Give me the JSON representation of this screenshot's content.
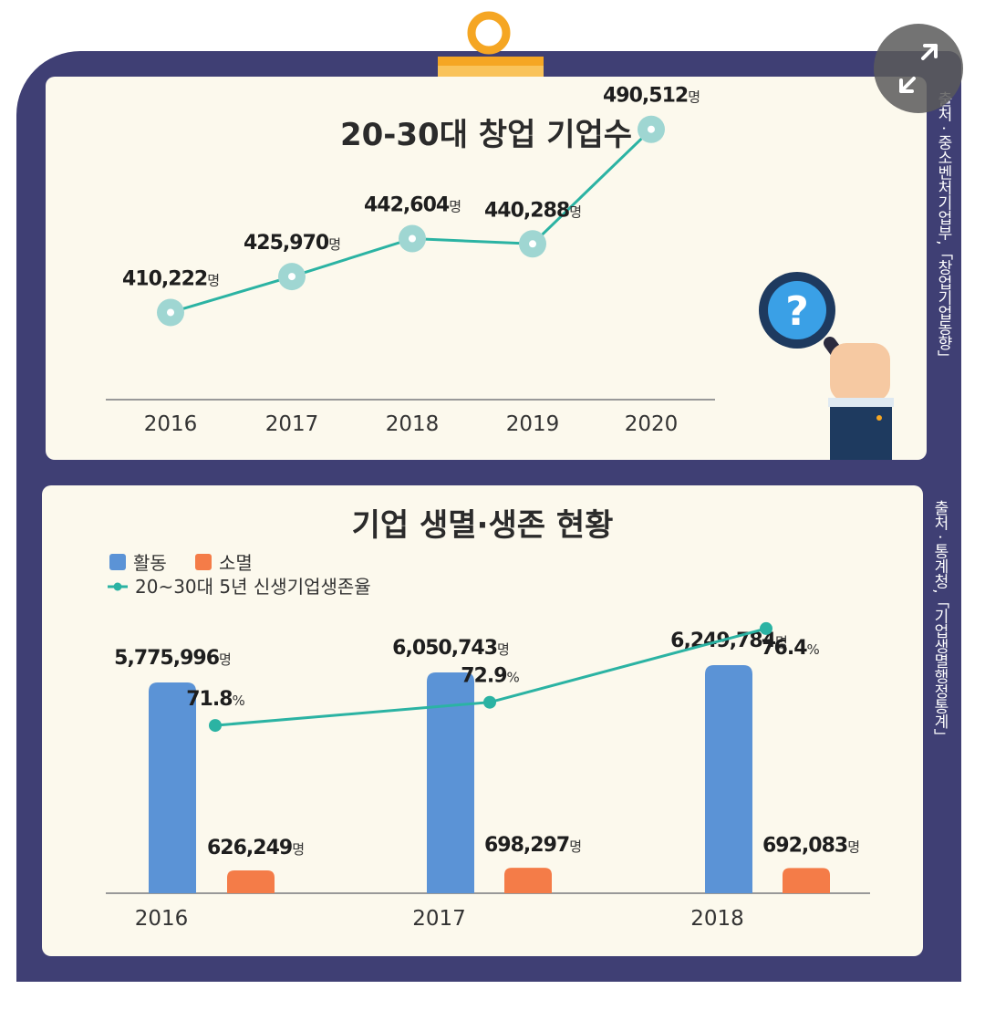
{
  "sources": {
    "top": "출처 · 중소벤처기업부,「창업기업동향」",
    "bottom": "출처 · 통계청,「기업생멸행정통계」"
  },
  "colors": {
    "frame": "#3f3f74",
    "panel": "#fcf9ed",
    "line": "#2bb3a3",
    "active_bar": "#5b93d6",
    "closed_bar": "#f47c48",
    "top_marker": "#9fd6d2"
  },
  "icons": [
    "binder-clip-icon",
    "magnifier-question-icon",
    "expand-icon"
  ],
  "chart_data": [
    {
      "type": "line",
      "title": "20-30대 창업 기업수",
      "categories": [
        "2016",
        "2017",
        "2018",
        "2019",
        "2020"
      ],
      "values": [
        410222,
        425970,
        442604,
        440288,
        490512
      ],
      "labels": [
        "410,222",
        "425,970",
        "442,604",
        "440,288",
        "490,512"
      ],
      "unit": "명",
      "ylim": [
        380000,
        500000
      ]
    },
    {
      "type": "bar",
      "title": "기업 생멸·생존 현황",
      "categories": [
        "2016",
        "2017",
        "2018"
      ],
      "series": [
        {
          "name": "활동",
          "values": [
            5775996,
            6050743,
            6249784
          ],
          "labels": [
            "5,775,996",
            "6,050,743",
            "6,249,784"
          ],
          "unit": "명"
        },
        {
          "name": "소멸",
          "values": [
            626249,
            698297,
            692083
          ],
          "labels": [
            "626,249",
            "698,297",
            "692,083"
          ],
          "unit": "명"
        }
      ],
      "line_series": {
        "name": "20~30대 5년 신생기업생존율",
        "values": [
          71.8,
          72.9,
          76.4
        ],
        "labels": [
          "71.8",
          "72.9",
          "76.4"
        ],
        "unit": "%",
        "ylim": [
          65,
          78
        ]
      },
      "ylim": [
        0,
        6500000
      ]
    }
  ]
}
